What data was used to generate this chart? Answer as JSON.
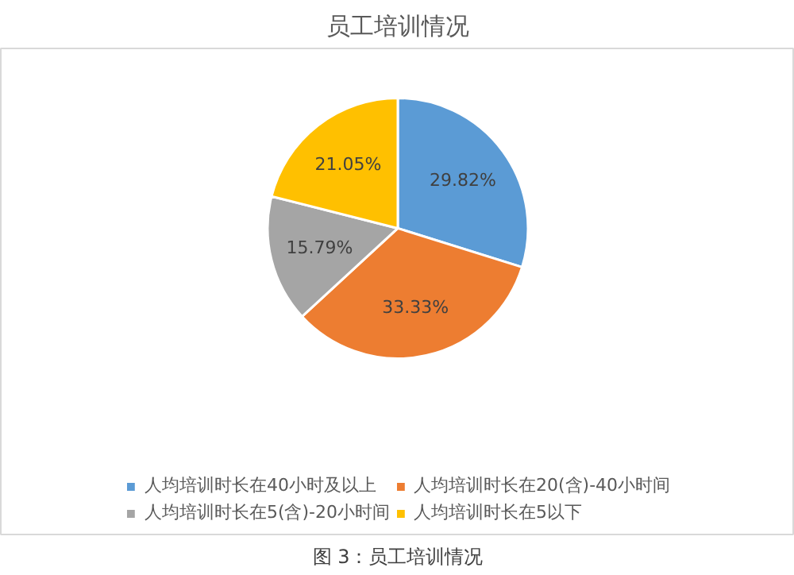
{
  "chart_data": {
    "type": "pie",
    "title": "员工培训情况",
    "categories": [
      "人均培训时长在40小时及以上",
      "人均培训时长在20(含)-40小时间",
      "人均培训时长在5(含)-20小时间",
      "人均培训时长在5以下"
    ],
    "values": [
      29.82,
      33.33,
      15.79,
      21.05
    ],
    "colors": [
      "#5b9bd5",
      "#ed7d31",
      "#a5a5a5",
      "#ffc000"
    ],
    "value_labels": [
      "29.82%",
      "33.33%",
      "15.79%",
      "21.05%"
    ],
    "legend": "bottom",
    "annotations": [
      "图 3：员工培训情况"
    ]
  }
}
